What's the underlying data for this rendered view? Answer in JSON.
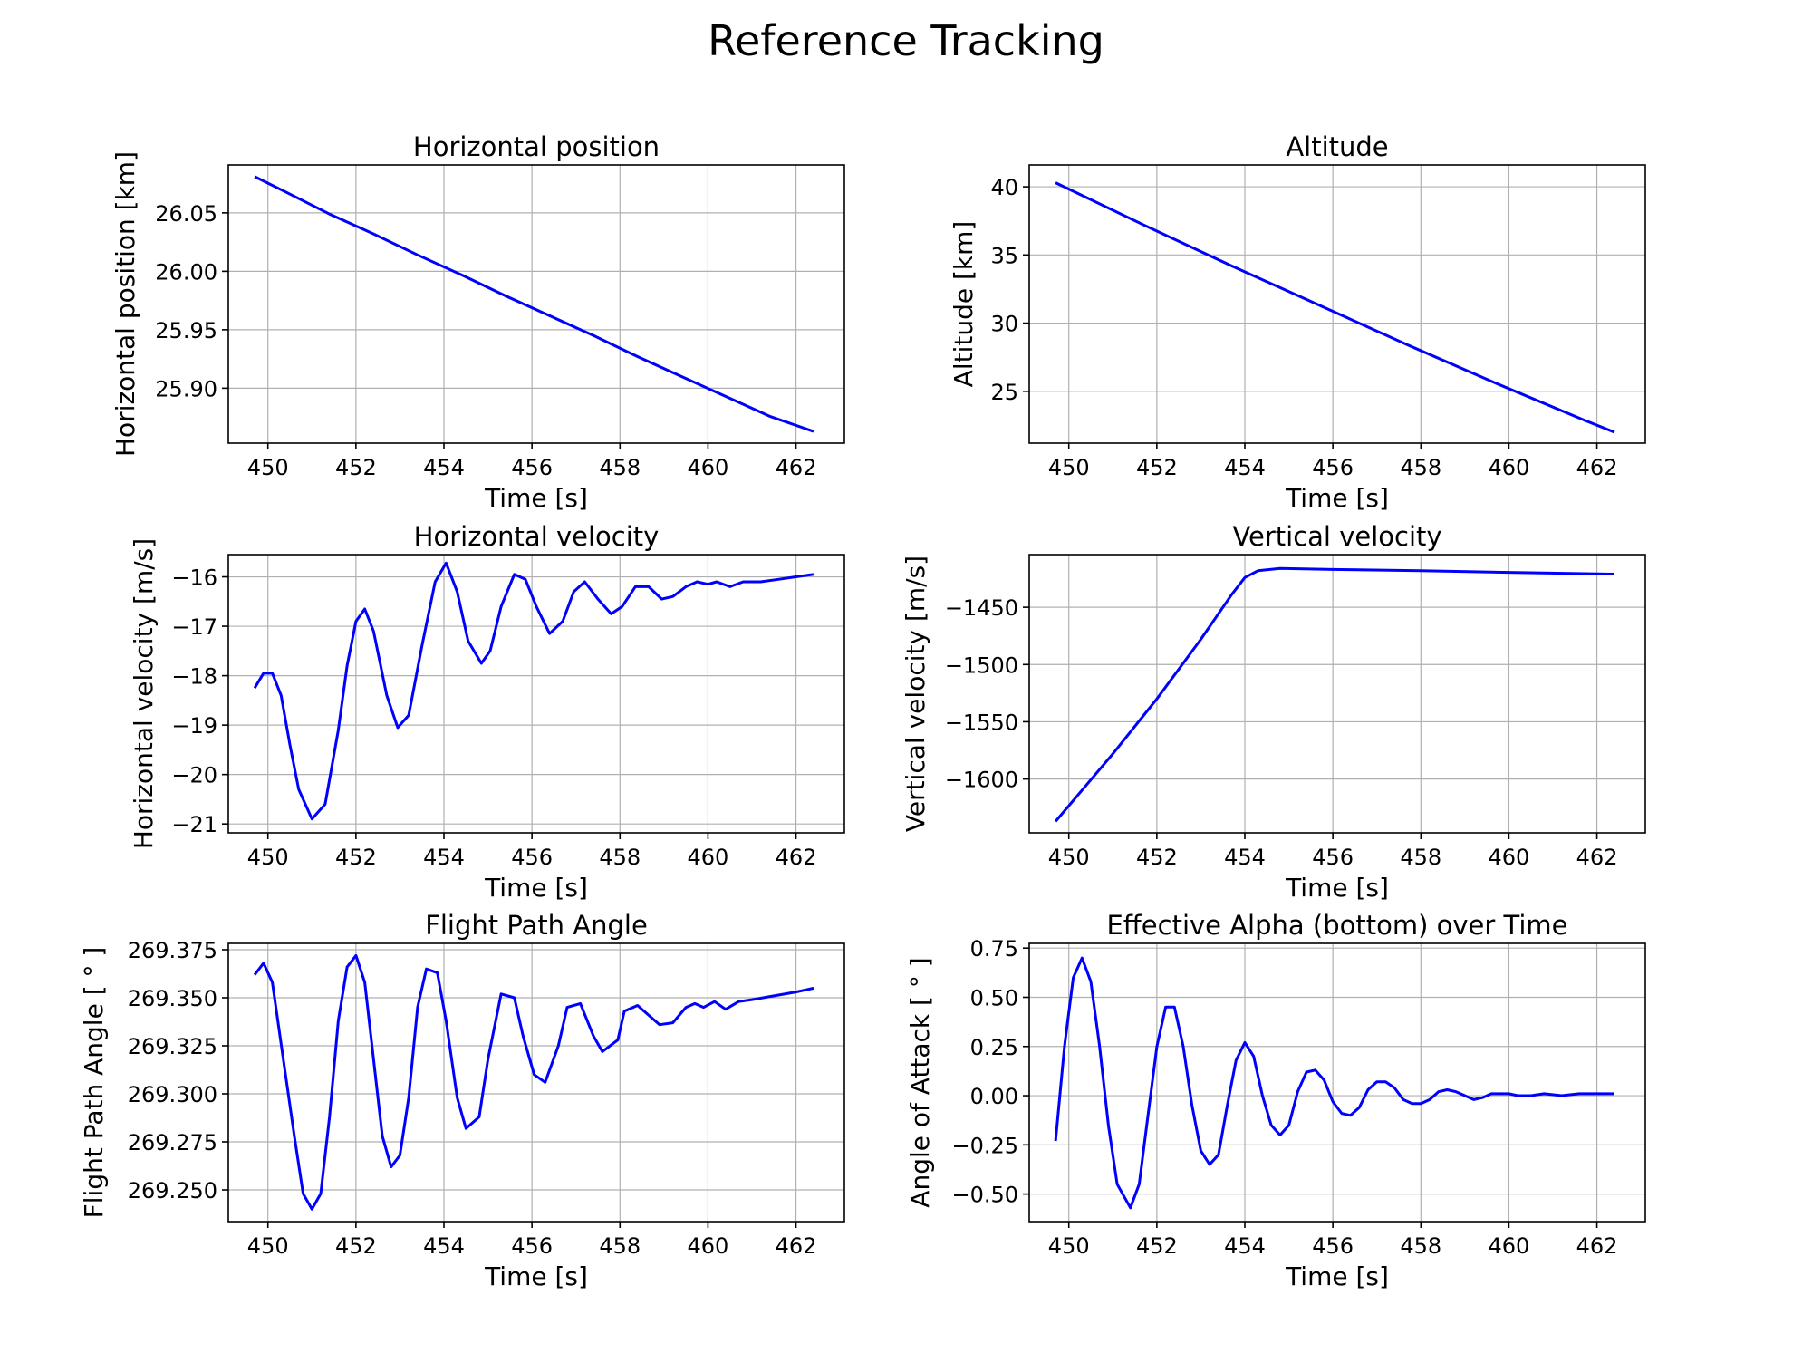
{
  "figure": {
    "title": "Reference Tracking"
  },
  "colors": {
    "line": "#0000ff",
    "grid": "#b0b0b0",
    "axes": "#000000"
  },
  "chart_data": [
    {
      "type": "line",
      "title": "Horizontal position",
      "xlabel": "Time [s]",
      "ylabel": "Horizontal position [km]",
      "xlim": [
        449.1,
        463.1
      ],
      "ylim": [
        25.853,
        26.091
      ],
      "xticks": [
        450,
        452,
        454,
        456,
        458,
        460,
        462
      ],
      "xtick_labels": [
        "450",
        "452",
        "454",
        "456",
        "458",
        "460",
        "462"
      ],
      "yticks": [
        25.9,
        25.95,
        26.0,
        26.05
      ],
      "ytick_labels": [
        "25.90",
        "25.95",
        "26.00",
        "26.05"
      ],
      "grid": true,
      "series": [
        {
          "x": [
            449.7,
            450.4,
            451.4,
            452.4,
            453.4,
            454.4,
            455.4,
            456.4,
            457.4,
            458.4,
            459.4,
            460.4,
            461.4,
            462.4
          ],
          "y": [
            26.081,
            26.068,
            26.049,
            26.032,
            26.014,
            25.997,
            25.979,
            25.962,
            25.945,
            25.927,
            25.91,
            25.893,
            25.876,
            25.863
          ]
        }
      ]
    },
    {
      "type": "line",
      "title": "Altitude",
      "xlabel": "Time [s]",
      "ylabel": "Altitude [km]",
      "xlim": [
        449.1,
        463.1
      ],
      "ylim": [
        21.2,
        41.6
      ],
      "xticks": [
        450,
        452,
        454,
        456,
        458,
        460,
        462
      ],
      "xtick_labels": [
        "450",
        "452",
        "454",
        "456",
        "458",
        "460",
        "462"
      ],
      "yticks": [
        25,
        30,
        35,
        40
      ],
      "ytick_labels": [
        "25",
        "30",
        "35",
        "40"
      ],
      "grid": true,
      "series": [
        {
          "x": [
            449.7,
            451.7,
            453.7,
            455.7,
            457.7,
            459.7,
            461.7,
            462.4
          ],
          "y": [
            40.3,
            37.2,
            34.2,
            31.3,
            28.4,
            25.6,
            22.9,
            22.0
          ]
        }
      ]
    },
    {
      "type": "line",
      "title": "Horizontal velocity",
      "xlabel": "Time [s]",
      "ylabel": "Horizontal velocity [m/s]",
      "xlim": [
        449.1,
        463.1
      ],
      "ylim": [
        -21.18,
        -15.55
      ],
      "xticks": [
        450,
        452,
        454,
        456,
        458,
        460,
        462
      ],
      "xtick_labels": [
        "450",
        "452",
        "454",
        "456",
        "458",
        "460",
        "462"
      ],
      "yticks": [
        -21,
        -20,
        -19,
        -18,
        -17,
        -16
      ],
      "ytick_labels": [
        "−21",
        "−20",
        "−19",
        "−18",
        "−17",
        "−16"
      ],
      "grid": true,
      "series": [
        {
          "x": [
            449.7,
            449.9,
            450.1,
            450.3,
            450.5,
            450.7,
            451.0,
            451.3,
            451.6,
            451.8,
            452.0,
            452.2,
            452.4,
            452.7,
            452.95,
            453.2,
            453.5,
            453.8,
            454.05,
            454.3,
            454.55,
            454.85,
            455.05,
            455.3,
            455.6,
            455.85,
            456.1,
            456.4,
            456.7,
            456.95,
            457.2,
            457.5,
            457.8,
            458.05,
            458.35,
            458.65,
            458.95,
            459.2,
            459.5,
            459.75,
            460.0,
            460.2,
            460.5,
            460.8,
            461.2,
            461.6,
            462.0,
            462.4
          ],
          "y": [
            -18.25,
            -17.95,
            -17.95,
            -18.4,
            -19.4,
            -20.3,
            -20.9,
            -20.6,
            -19.1,
            -17.8,
            -16.9,
            -16.65,
            -17.1,
            -18.4,
            -19.05,
            -18.8,
            -17.4,
            -16.1,
            -15.72,
            -16.3,
            -17.3,
            -17.75,
            -17.5,
            -16.6,
            -15.95,
            -16.05,
            -16.6,
            -17.15,
            -16.9,
            -16.3,
            -16.1,
            -16.45,
            -16.75,
            -16.6,
            -16.2,
            -16.2,
            -16.45,
            -16.4,
            -16.2,
            -16.1,
            -16.15,
            -16.1,
            -16.2,
            -16.1,
            -16.1,
            -16.05,
            -16.0,
            -15.95
          ]
        }
      ]
    },
    {
      "type": "line",
      "title": "Vertical velocity",
      "xlabel": "Time [s]",
      "ylabel": "Vertical velocity [m/s]",
      "xlim": [
        449.1,
        463.1
      ],
      "ylim": [
        -1647,
        -1404
      ],
      "xticks": [
        450,
        452,
        454,
        456,
        458,
        460,
        462
      ],
      "xtick_labels": [
        "450",
        "452",
        "454",
        "456",
        "458",
        "460",
        "462"
      ],
      "yticks": [
        -1600,
        -1550,
        -1500,
        -1450
      ],
      "ytick_labels": [
        "−1600",
        "−1550",
        "−1500",
        "−1450"
      ],
      "grid": true,
      "series": [
        {
          "x": [
            449.7,
            451.0,
            452.0,
            453.0,
            453.7,
            454.0,
            454.3,
            454.8,
            456.0,
            458.0,
            460.0,
            462.4
          ],
          "y": [
            -1637,
            -1578,
            -1530,
            -1478,
            -1439,
            -1424,
            -1418,
            -1416,
            -1417,
            -1418,
            -1419.5,
            -1421
          ]
        }
      ]
    },
    {
      "type": "line",
      "title": "Flight Path Angle",
      "xlabel": "Time [s]",
      "ylabel": "Flight Path Angle [ $^\\circ$ ]",
      "xlim": [
        449.1,
        463.1
      ],
      "ylim": [
        269.2335,
        269.3783
      ],
      "xticks": [
        450,
        452,
        454,
        456,
        458,
        460,
        462
      ],
      "xtick_labels": [
        "450",
        "452",
        "454",
        "456",
        "458",
        "460",
        "462"
      ],
      "yticks": [
        269.25,
        269.275,
        269.3,
        269.325,
        269.35,
        269.375
      ],
      "ytick_labels": [
        "269.250",
        "269.275",
        "269.300",
        "269.325",
        "269.350",
        "269.375"
      ],
      "grid": true,
      "series": [
        {
          "x": [
            449.7,
            449.9,
            450.1,
            450.35,
            450.6,
            450.8,
            451.0,
            451.2,
            451.4,
            451.6,
            451.8,
            452.0,
            452.2,
            452.4,
            452.6,
            452.8,
            453.0,
            453.2,
            453.4,
            453.6,
            453.85,
            454.05,
            454.3,
            454.5,
            454.8,
            455.0,
            455.3,
            455.6,
            455.8,
            456.05,
            456.3,
            456.6,
            456.8,
            457.1,
            457.4,
            457.6,
            457.95,
            458.1,
            458.4,
            458.7,
            458.9,
            459.2,
            459.5,
            459.7,
            459.9,
            460.15,
            460.4,
            460.7,
            461.0,
            461.5,
            462.0,
            462.4
          ],
          "y": [
            269.362,
            269.368,
            269.358,
            269.318,
            269.278,
            269.248,
            269.24,
            269.248,
            269.288,
            269.338,
            269.366,
            269.372,
            269.358,
            269.318,
            269.278,
            269.262,
            269.268,
            269.298,
            269.345,
            269.365,
            269.363,
            269.338,
            269.298,
            269.282,
            269.288,
            269.318,
            269.352,
            269.35,
            269.33,
            269.31,
            269.306,
            269.325,
            269.345,
            269.347,
            269.33,
            269.322,
            269.328,
            269.343,
            269.346,
            269.34,
            269.336,
            269.337,
            269.345,
            269.347,
            269.345,
            269.348,
            269.344,
            269.348,
            269.349,
            269.351,
            269.353,
            269.355
          ]
        }
      ]
    },
    {
      "type": "line",
      "title": "Effective Alpha (bottom) over Time",
      "xlabel": "Time [s]",
      "ylabel": "Angle of Attack [ $^\\circ$ ]",
      "xlim": [
        449.1,
        463.1
      ],
      "ylim": [
        -0.64,
        0.774
      ],
      "xticks": [
        450,
        452,
        454,
        456,
        458,
        460,
        462
      ],
      "xtick_labels": [
        "450",
        "452",
        "454",
        "456",
        "458",
        "460",
        "462"
      ],
      "yticks": [
        -0.5,
        -0.25,
        0.0,
        0.25,
        0.5,
        0.75
      ],
      "ytick_labels": [
        "−0.50",
        "−0.25",
        "0.00",
        "0.25",
        "0.50",
        "0.75"
      ],
      "grid": true,
      "series": [
        {
          "x": [
            449.7,
            449.9,
            450.1,
            450.3,
            450.5,
            450.7,
            450.9,
            451.1,
            451.4,
            451.6,
            451.8,
            452.0,
            452.2,
            452.4,
            452.6,
            452.8,
            453.0,
            453.2,
            453.4,
            453.6,
            453.8,
            454.0,
            454.2,
            454.4,
            454.6,
            454.8,
            455.0,
            455.2,
            455.4,
            455.6,
            455.8,
            456.0,
            456.2,
            456.4,
            456.6,
            456.8,
            457.0,
            457.2,
            457.4,
            457.6,
            457.8,
            458.0,
            458.2,
            458.4,
            458.6,
            458.8,
            459.0,
            459.2,
            459.4,
            459.6,
            459.8,
            460.0,
            460.2,
            460.5,
            460.8,
            461.2,
            461.6,
            462.0,
            462.4
          ],
          "y": [
            -0.23,
            0.25,
            0.6,
            0.7,
            0.58,
            0.25,
            -0.15,
            -0.45,
            -0.57,
            -0.45,
            -0.1,
            0.25,
            0.45,
            0.45,
            0.25,
            -0.05,
            -0.28,
            -0.35,
            -0.3,
            -0.05,
            0.18,
            0.27,
            0.2,
            0.0,
            -0.15,
            -0.2,
            -0.15,
            0.02,
            0.12,
            0.13,
            0.08,
            -0.03,
            -0.09,
            -0.1,
            -0.06,
            0.03,
            0.07,
            0.07,
            0.04,
            -0.02,
            -0.04,
            -0.04,
            -0.02,
            0.02,
            0.03,
            0.02,
            0.0,
            -0.02,
            -0.01,
            0.01,
            0.01,
            0.01,
            0.0,
            0.0,
            0.01,
            0.0,
            0.01,
            0.01,
            0.01
          ]
        }
      ]
    }
  ]
}
